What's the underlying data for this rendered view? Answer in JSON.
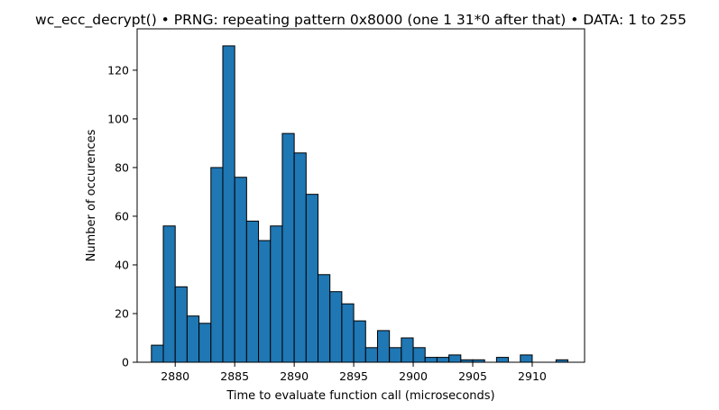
{
  "chart_data": {
    "type": "bar",
    "title": "wc_ecc_decrypt() • PRNG: repeating pattern 0x8000 (one 1 31*0 after that) • DATA: 1 to 255",
    "xlabel": "Time to evaluate function call (microseconds)",
    "ylabel": "Number of occurences",
    "xlim": [
      2876.8,
      2914.4
    ],
    "ylim": [
      0,
      137
    ],
    "xticks": [
      2880,
      2885,
      2890,
      2895,
      2900,
      2905,
      2910
    ],
    "yticks": [
      0,
      20,
      40,
      60,
      80,
      100,
      120
    ],
    "bin_start": 2878.0,
    "bin_width": 1.0,
    "values": [
      7,
      56,
      31,
      19,
      16,
      80,
      130,
      76,
      58,
      50,
      56,
      94,
      86,
      69,
      36,
      29,
      24,
      17,
      6,
      13,
      6,
      10,
      6,
      2,
      2,
      3,
      1,
      1,
      0,
      2,
      0,
      3,
      0,
      0,
      1
    ],
    "bar_color": "#1f77b4",
    "edge_color": "#000000",
    "grid": false
  }
}
